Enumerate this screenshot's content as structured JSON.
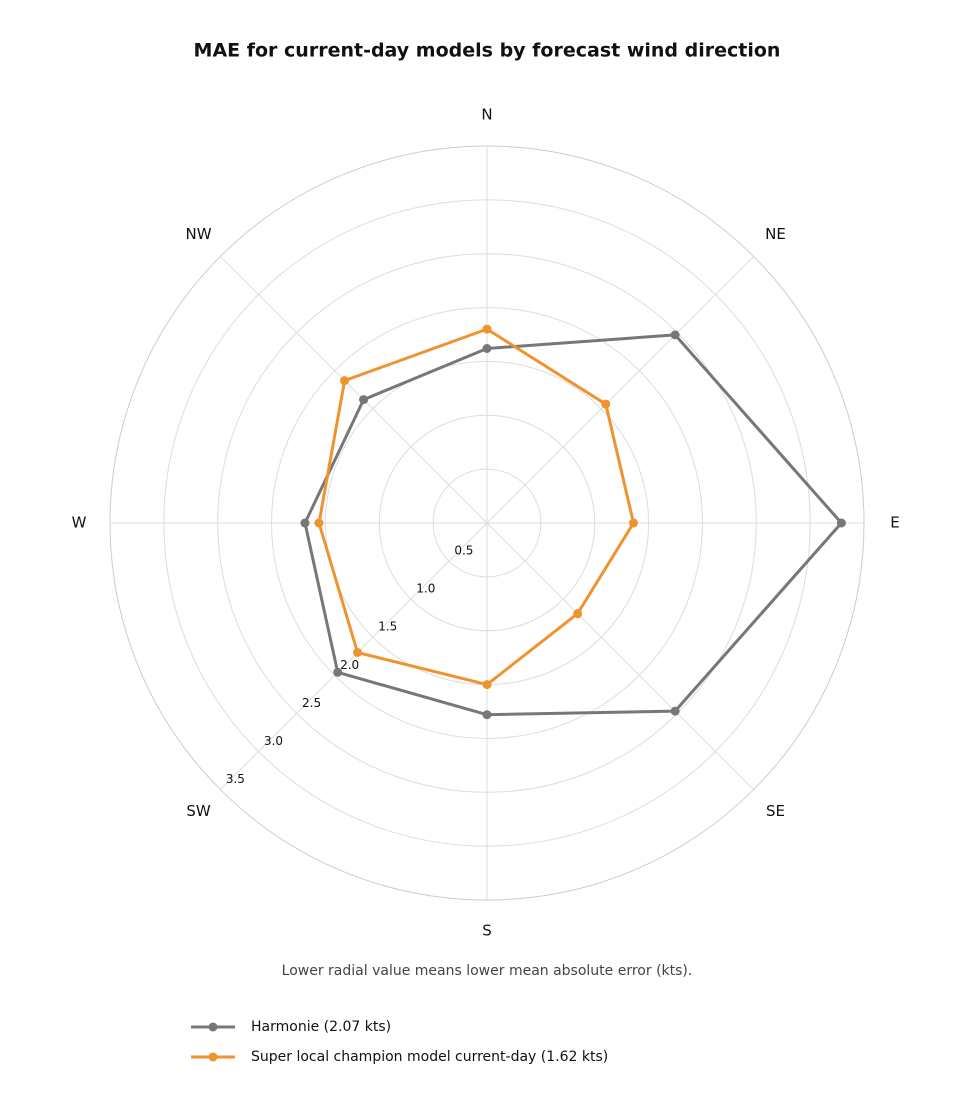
{
  "chart_data": {
    "type": "radar",
    "title": "MAE for current-day models by forecast wind direction",
    "note": "Lower radial value means lower mean absolute error (kts).",
    "categories": [
      "N",
      "NE",
      "E",
      "SE",
      "S",
      "SW",
      "W",
      "NW"
    ],
    "rlim": [
      0,
      3.5
    ],
    "rticks": [
      0.5,
      1.0,
      1.5,
      2.0,
      2.5,
      3.0,
      3.5
    ],
    "grid": true,
    "series": [
      {
        "name": "Harmonie (2.07 kts)",
        "color": "#777777",
        "values": [
          1.62,
          2.47,
          3.29,
          2.47,
          1.78,
          1.96,
          1.69,
          1.62
        ]
      },
      {
        "name": "Super local champion model current-day (1.62 kts)",
        "color": "#f0922e",
        "values": [
          1.8,
          1.56,
          1.36,
          1.19,
          1.5,
          1.7,
          1.56,
          1.87
        ]
      }
    ]
  }
}
